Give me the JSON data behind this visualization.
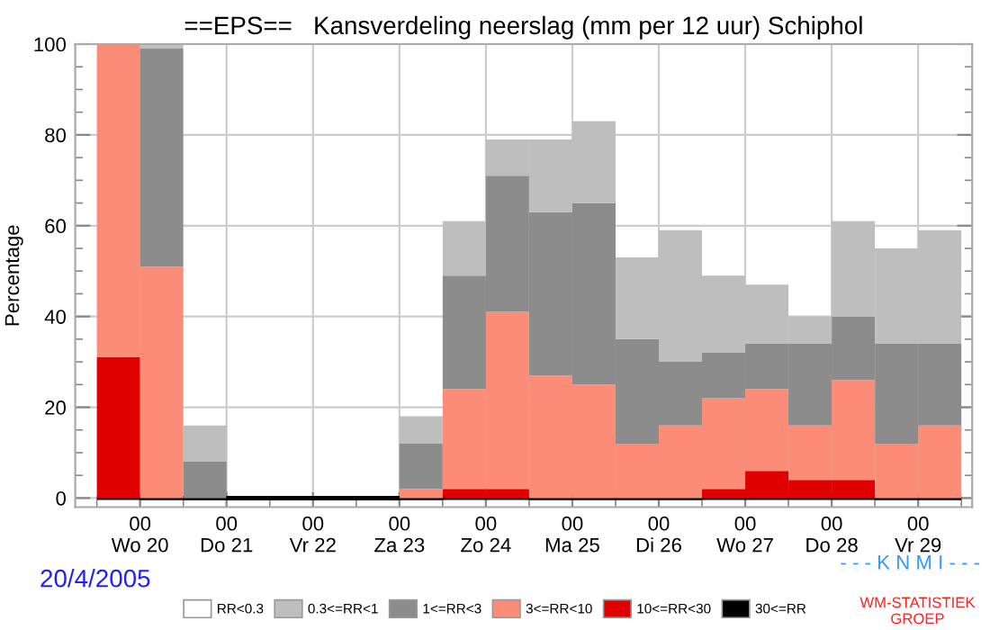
{
  "chart_data": {
    "type": "bar",
    "stacked": true,
    "title": "==EPS==   Kansverdeling neerslag (mm per 12 uur) Schiphol",
    "ylabel": "Percentage",
    "categories": [
      null,
      "00\nWo 20",
      null,
      "00\nDo 21",
      null,
      "00\nVr 22",
      null,
      "00\nZa 23",
      null,
      "00\nZo 24",
      null,
      "00\nMa 25",
      null,
      "00\nDi 26",
      null,
      "00\nWo 27",
      null,
      "00\nDo 28",
      null,
      "00\nVr 29"
    ],
    "ylim": [
      -2,
      100
    ],
    "yticks": [
      0,
      20,
      40,
      60,
      80,
      100
    ],
    "grid": true,
    "legend": "bottom",
    "series": [
      {
        "name": "30<=RR",
        "color": "#000000",
        "values": [
          0,
          0,
          0,
          0,
          0,
          0,
          0,
          0,
          0,
          0,
          0,
          0,
          0,
          0,
          0,
          0,
          0,
          0,
          0,
          0
        ]
      },
      {
        "name": "10<=RR<30",
        "color": "#e00000",
        "values": [
          31,
          0,
          0,
          0,
          0,
          0,
          0,
          0,
          2,
          2,
          0,
          0,
          0,
          0,
          2,
          6,
          4,
          4,
          0,
          0
        ]
      },
      {
        "name": "3<=RR<10",
        "color": "#fa8c78",
        "values": [
          69,
          51,
          0,
          0,
          0,
          0,
          0,
          2,
          22,
          39,
          27,
          25,
          12,
          16,
          20,
          18,
          12,
          22,
          12,
          16
        ]
      },
      {
        "name": "1<=RR<3",
        "color": "#8c8c8c",
        "values": [
          0,
          48,
          8,
          0,
          0,
          0,
          0,
          10,
          25,
          30,
          36,
          40,
          23,
          14,
          10,
          10,
          18,
          14,
          22,
          18
        ]
      },
      {
        "name": "0.3<=RR<1",
        "color": "#bebebe",
        "values": [
          0,
          1,
          8,
          0,
          0,
          0,
          0,
          6,
          12,
          8,
          16,
          18,
          18,
          29,
          17,
          13,
          6,
          21,
          21,
          25
        ]
      },
      {
        "name": "RR<0.3",
        "color": "#ffffff",
        "values": [
          null,
          null,
          null,
          null,
          null,
          null,
          null,
          null,
          null,
          null,
          null,
          null,
          null,
          null,
          null,
          null,
          null,
          null,
          null,
          null
        ]
      }
    ],
    "annotations": [
      "20/4/2005",
      "- - - K N M I - - -",
      "WM-STATISTIEK\nGROEP"
    ]
  }
}
